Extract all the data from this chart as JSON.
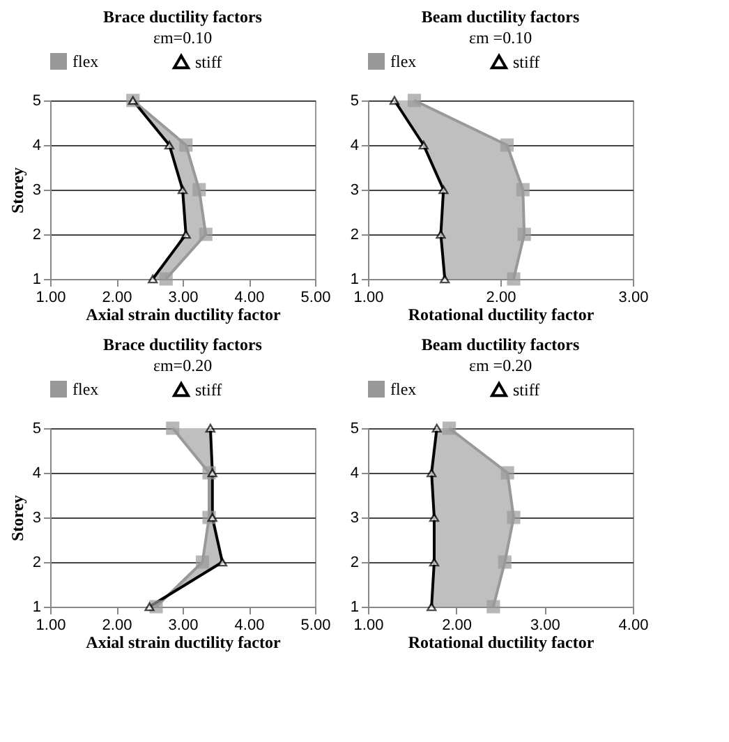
{
  "chart_data": [
    {
      "type": "line",
      "title": "Brace ductility factors",
      "subtitle": "εm=0.10",
      "xlabel": "Axial strain ductility factor",
      "ylabel": "Storey",
      "xlim": [
        1,
        5
      ],
      "xticks": [
        {
          "value": 1,
          "label": "1.00"
        },
        {
          "value": 2,
          "label": "2.00"
        },
        {
          "value": 3,
          "label": "3.00"
        },
        {
          "value": 4,
          "label": "4.00"
        },
        {
          "value": 5,
          "label": "5.00"
        }
      ],
      "ylim": [
        1,
        5
      ],
      "yticks": [
        1,
        2,
        3,
        4,
        5
      ],
      "grid": "y",
      "legend": "top",
      "series": [
        {
          "name": "flex",
          "color": "#999999",
          "marker": "square",
          "x": [
            2.75,
            3.35,
            3.25,
            3.05,
            2.25
          ],
          "values": [
            1,
            2,
            3,
            4,
            5
          ]
        },
        {
          "name": "stiff",
          "color": "#000000",
          "marker": "triangle",
          "x": [
            2.55,
            3.05,
            3.0,
            2.8,
            2.25
          ],
          "values": [
            1,
            2,
            3,
            4,
            5
          ]
        }
      ]
    },
    {
      "type": "line",
      "title": "Beam ductility factors",
      "subtitle": "εm =0.10",
      "xlabel": "Rotational ductility factor",
      "xlim": [
        1,
        3
      ],
      "xticks": [
        {
          "value": 1,
          "label": "1.00"
        },
        {
          "value": 2,
          "label": "2.00"
        },
        {
          "value": 3,
          "label": "3.00"
        }
      ],
      "ylim": [
        1,
        5
      ],
      "yticks": [
        1,
        2,
        3,
        4,
        5
      ],
      "grid": "y",
      "legend": "top",
      "series": [
        {
          "name": "flex",
          "color": "#999999",
          "marker": "square",
          "x": [
            2.1,
            2.18,
            2.17,
            2.05,
            1.35
          ],
          "values": [
            1,
            2,
            3,
            4,
            5
          ]
        },
        {
          "name": "stiff",
          "color": "#000000",
          "marker": "triangle",
          "x": [
            1.58,
            1.55,
            1.57,
            1.42,
            1.2
          ],
          "values": [
            1,
            2,
            3,
            4,
            5
          ]
        }
      ]
    },
    {
      "type": "line",
      "title": "Brace ductility factors",
      "subtitle": "εm=0.20",
      "xlabel": "Axial strain ductility factor",
      "ylabel": "Storey",
      "xlim": [
        1,
        5
      ],
      "xticks": [
        {
          "value": 1,
          "label": "1.00"
        },
        {
          "value": 2,
          "label": "2.00"
        },
        {
          "value": 3,
          "label": "3.00"
        },
        {
          "value": 4,
          "label": "4.00"
        },
        {
          "value": 5,
          "label": "5.00"
        }
      ],
      "ylim": [
        1,
        5
      ],
      "yticks": [
        1,
        2,
        3,
        4,
        5
      ],
      "grid": "y",
      "legend": "top",
      "series": [
        {
          "name": "flex",
          "color": "#999999",
          "marker": "square",
          "x": [
            2.6,
            3.3,
            3.4,
            3.4,
            2.85
          ],
          "values": [
            1,
            2,
            3,
            4,
            5
          ]
        },
        {
          "name": "stiff",
          "color": "#000000",
          "marker": "triangle",
          "x": [
            2.5,
            3.6,
            3.45,
            3.45,
            3.42
          ],
          "values": [
            1,
            2,
            3,
            4,
            5
          ]
        }
      ]
    },
    {
      "type": "line",
      "title": "Beam ductility factors",
      "subtitle": "εm =0.20",
      "xlabel": "Rotational ductility factor",
      "xlim": [
        1,
        4
      ],
      "xticks": [
        {
          "value": 1,
          "label": "1.00"
        },
        {
          "value": 2,
          "label": "2.00"
        },
        {
          "value": 3,
          "label": "3.00"
        },
        {
          "value": 4,
          "label": "4.00"
        }
      ],
      "ylim": [
        1,
        5
      ],
      "yticks": [
        1,
        2,
        3,
        4,
        5
      ],
      "grid": "y",
      "legend": "top",
      "series": [
        {
          "name": "flex",
          "color": "#999999",
          "marker": "square",
          "x": [
            2.42,
            2.55,
            2.65,
            2.58,
            1.92
          ],
          "values": [
            1,
            2,
            3,
            4,
            5
          ]
        },
        {
          "name": "stiff",
          "color": "#000000",
          "marker": "triangle",
          "x": [
            1.72,
            1.75,
            1.75,
            1.72,
            1.78
          ],
          "values": [
            1,
            2,
            3,
            4,
            5
          ]
        }
      ]
    }
  ]
}
